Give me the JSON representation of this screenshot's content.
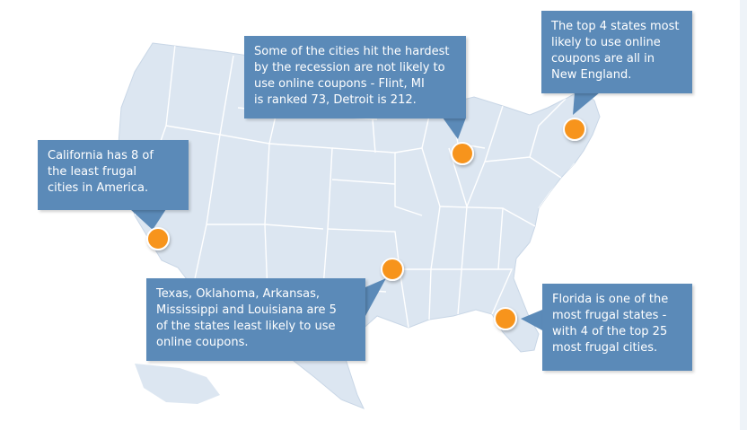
{
  "colors": {
    "land": "#dce6f1",
    "state_border": "#ffffff",
    "callout_bg": "#5b8ab8",
    "callout_text": "#ffffff",
    "marker_fill": "#f7941d",
    "marker_ring": "#ffffff"
  },
  "callouts": {
    "recession": "Some of the cities hit the hardest\nby the recession are not likely to\nuse online coupons - Flint, MI\nis ranked 73, Detroit is 212.",
    "new_england": "The top 4 states most\nlikely to use online\ncoupons are all in\nNew England.",
    "california": "California has 8 of\nthe least frugal\ncities in America.",
    "texas": "Texas, Oklahoma, Arkansas,\nMississippi and Louisiana are 5\nof the states least likely to use\nonline coupons.",
    "florida": "Florida is one of the\nmost frugal states -\nwith 4 of the top 25\nmost frugal cities."
  },
  "markers": [
    {
      "name": "california-marker",
      "region": "California"
    },
    {
      "name": "michigan-marker",
      "region": "Michigan"
    },
    {
      "name": "new-england-marker",
      "region": "New England"
    },
    {
      "name": "louisiana-marker",
      "region": "Louisiana"
    },
    {
      "name": "florida-marker",
      "region": "Florida"
    }
  ]
}
